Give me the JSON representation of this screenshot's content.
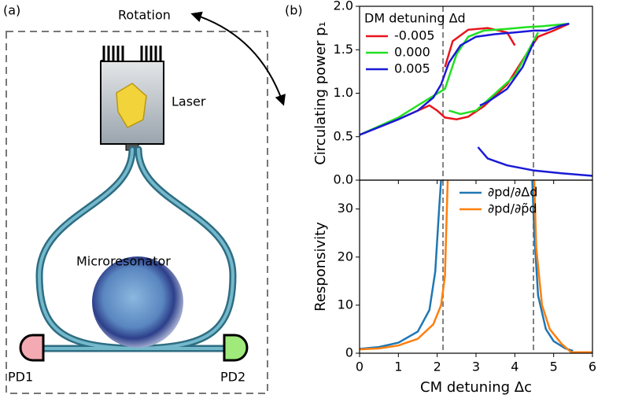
{
  "diagram": {
    "panel_label": "(a)",
    "rotation": "Rotation",
    "laser": "Laser",
    "resonator": "Microresonator",
    "pd1": "PD1",
    "pd2": "PD2"
  },
  "chart_data": [
    {
      "type": "line",
      "panel_label": "(b)",
      "ylabel": "Circulating power p₁",
      "legend_title": "DM detuning Δd",
      "legend": "upper left",
      "xlim": [
        0,
        6
      ],
      "xticks": [
        0,
        1,
        2,
        3,
        4,
        5,
        6
      ],
      "ylim": [
        0,
        2.0
      ],
      "yticks": [
        {
          "value": 0,
          "label": "0.0"
        },
        {
          "value": 0.5,
          "label": "0.5"
        },
        {
          "value": 1,
          "label": "1.0"
        },
        {
          "value": 1.5,
          "label": "1.5"
        },
        {
          "value": 2,
          "label": "2.0"
        }
      ],
      "vlines": [
        2.15,
        4.48
      ],
      "series": [
        {
          "name": "-0.005",
          "color": "#e8141c",
          "x": [
            0,
            1,
            1.5,
            1.8,
            2.0,
            2.2,
            2.5,
            2.8,
            3.2,
            3.8,
            4.3,
            4.6,
            5.0,
            5.4,
            null,
            2.2,
            2.4,
            2.8,
            3.3,
            3.8,
            4.0
          ],
          "values": [
            0.52,
            0.7,
            0.8,
            0.86,
            0.8,
            0.72,
            0.7,
            0.73,
            0.85,
            1.1,
            1.45,
            1.65,
            1.72,
            1.8,
            null,
            1.3,
            1.6,
            1.73,
            1.75,
            1.7,
            1.55
          ]
        },
        {
          "name": "0.000",
          "color": "#22e022",
          "x": [
            0,
            1,
            1.5,
            2.2,
            2.5,
            2.8,
            3.2,
            3.8,
            4.3,
            4.7,
            5.4,
            null,
            2.3,
            2.6,
            3.0,
            3.5,
            4.0,
            4.3,
            4.6
          ],
          "values": [
            0.52,
            0.72,
            0.86,
            1.05,
            1.45,
            1.65,
            1.72,
            1.74,
            1.76,
            1.77,
            1.8,
            null,
            0.8,
            0.76,
            0.8,
            1.0,
            1.2,
            1.45,
            1.7
          ]
        },
        {
          "name": "0.005",
          "color": "#1a1ad6",
          "x": [
            0,
            1,
            1.5,
            1.9,
            2.1,
            2.3,
            2.6,
            3.0,
            3.5,
            4.0,
            4.5,
            4.8,
            5.2,
            5.4,
            null,
            3.05,
            3.3,
            3.8,
            4.5,
            5.2,
            6,
            null,
            4.5,
            4.2,
            3.8,
            3.3,
            3.1
          ],
          "values": [
            0.52,
            0.7,
            0.8,
            0.95,
            1.1,
            1.35,
            1.55,
            1.65,
            1.68,
            1.7,
            1.72,
            1.72,
            1.78,
            1.8,
            null,
            0.38,
            0.25,
            0.17,
            0.11,
            0.08,
            0.05,
            null,
            1.6,
            1.3,
            1.05,
            0.9,
            0.86
          ]
        }
      ]
    },
    {
      "type": "line",
      "ylabel": "Responsivity",
      "xlabel": "CM detuning Δc",
      "legend": "upper right",
      "xlim": [
        0,
        6
      ],
      "xticks": [
        0,
        1,
        2,
        3,
        4,
        5,
        6
      ],
      "ylim": [
        0,
        36
      ],
      "yticks": [
        0,
        10,
        20,
        30
      ],
      "vlines": [
        2.15,
        4.48
      ],
      "series": [
        {
          "name": "∂pd/∂Δd",
          "color": "#1f77b4",
          "x": [
            0,
            0.5,
            1,
            1.5,
            1.8,
            1.95,
            2.05,
            2.1,
            null,
            4.45,
            4.5,
            4.6,
            4.8,
            5.0,
            5.3,
            5.5
          ],
          "values": [
            0.9,
            1.3,
            2.2,
            4.5,
            9,
            17,
            30,
            36,
            null,
            36,
            25,
            12,
            5,
            2.5,
            1,
            0.5
          ]
        },
        {
          "name": "∂pd/∂p̃d",
          "color": "#ff7f0e",
          "x": [
            0,
            0.5,
            1,
            1.5,
            1.9,
            2.1,
            2.2,
            2.27,
            null,
            4.5,
            4.55,
            4.7,
            4.9,
            5.1,
            5.2,
            5.45,
            6
          ],
          "values": [
            0.8,
            1.0,
            1.6,
            3,
            6,
            10,
            16,
            36,
            null,
            36,
            22,
            10,
            5,
            3,
            2,
            0.2,
            0.2
          ]
        }
      ]
    }
  ]
}
